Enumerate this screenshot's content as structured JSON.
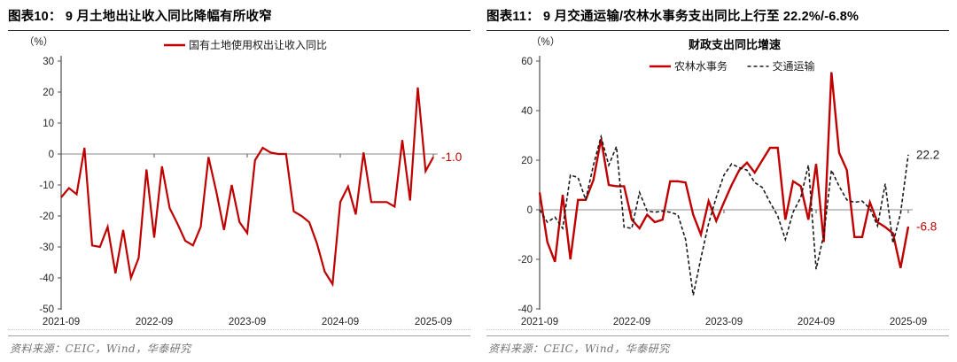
{
  "panels": [
    {
      "title": "图表10：  9 月土地出让收入同比降幅有所收窄",
      "source": "资料来源：CEIC，Wind，华泰研究"
    },
    {
      "title": "图表11：  9 月交通运输/农林水事务支出同比上行至 22.2%/-6.8%",
      "source": "资料来源：CEIC，Wind，华泰研究"
    }
  ],
  "colors": {
    "accent_red": "#c00000",
    "dash_black": "#1a1a1a",
    "zero_line": "#8a8a8a",
    "axis": "#4d4d4d",
    "tick_text": "#262626"
  },
  "chart_data": [
    {
      "type": "line",
      "title": "",
      "unit_label": "（%）",
      "ylim": [
        -50,
        30
      ],
      "yticks": [
        30,
        20,
        10,
        0,
        -10,
        -20,
        -30,
        -40,
        -50
      ],
      "x_tick_labels": [
        "2021-09",
        "2022-09",
        "2023-09",
        "2024-09",
        "2025-09"
      ],
      "x_tick_indices": [
        0,
        12,
        24,
        36,
        48
      ],
      "grid": "zero-line-only",
      "legend_position": "top",
      "series": [
        {
          "name": "国有土地使用权出让收入同比",
          "color": "#c00000",
          "style": "solid",
          "end_label": "-1.0",
          "values": [
            -14,
            -11,
            -13,
            2,
            -29.5,
            -30,
            -23.5,
            -38.5,
            -24.5,
            -40,
            -33.5,
            -5,
            -27,
            -4,
            -17.5,
            -22.5,
            -28,
            -29.5,
            -23.5,
            -1,
            -12,
            -24.5,
            -10,
            -22,
            -25.5,
            -2,
            2,
            0.5,
            0,
            0,
            -18.5,
            -20,
            -22,
            -29,
            -38,
            -42,
            -15.5,
            -10.5,
            -19.5,
            0.5,
            -15.5,
            -15.5,
            -15.5,
            -17,
            4.5,
            -15,
            21.5,
            -5.5,
            -1
          ]
        }
      ]
    },
    {
      "type": "line",
      "title": "财政支出同比增速",
      "unit_label": "（%）",
      "ylim": [
        -40,
        60
      ],
      "yticks": [
        60,
        40,
        20,
        0,
        -20,
        -40
      ],
      "x_tick_labels": [
        "2021-09",
        "2022-09",
        "2023-09",
        "2024-09",
        "2025-09"
      ],
      "x_tick_indices": [
        0,
        12,
        24,
        36,
        48
      ],
      "grid": "zero-line-only",
      "legend_position": "top",
      "series": [
        {
          "name": "农林水事务",
          "color": "#c00000",
          "style": "solid",
          "end_label": "-6.8",
          "values": [
            7,
            -13,
            -21,
            6,
            -20,
            4,
            4,
            12,
            28.5,
            10,
            9.5,
            9.5,
            -4,
            -7.5,
            -2,
            -5,
            -4,
            11.5,
            11.5,
            11,
            -2,
            -10,
            3.5,
            -4.5,
            3,
            10,
            16,
            19,
            15,
            20,
            25,
            25,
            -4,
            11.5,
            9.5,
            -4,
            18.5,
            -13,
            55.5,
            23,
            16,
            -11,
            -11,
            3,
            -5,
            -7,
            -9.5,
            -23.5,
            -6.8
          ]
        },
        {
          "name": "交通运输",
          "color": "#1a1a1a",
          "style": "dashed",
          "end_label": "22.2",
          "values": [
            0,
            -5,
            -3,
            -7.5,
            14,
            13,
            4,
            18,
            29.5,
            18,
            25.5,
            -7,
            -7.5,
            7,
            -0.5,
            -1,
            -0.5,
            -1,
            -2,
            -12,
            -34.5,
            -19.5,
            -5.5,
            5,
            14,
            18.5,
            17,
            16,
            11,
            9,
            3,
            -2.5,
            -12,
            -1,
            5,
            18,
            -24,
            -10,
            16,
            9.5,
            4,
            3,
            3.5,
            0.5,
            -6.5,
            10.5,
            -13.5,
            -1.5,
            22.2
          ]
        }
      ]
    }
  ]
}
